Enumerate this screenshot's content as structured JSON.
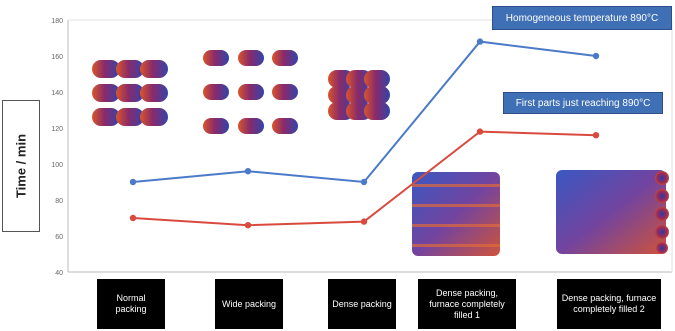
{
  "chart_data": {
    "type": "line",
    "ylabel": "Time / min",
    "ylim": [
      40,
      180
    ],
    "yticks": [
      "40",
      "60",
      "80",
      "100",
      "120",
      "140",
      "160",
      "180"
    ],
    "categories": [
      "Normal packing",
      "Wide packing",
      "Dense packing",
      "Dense packing, furnace completely filled 1",
      "Dense packing, furnace completely filled 2"
    ],
    "series": [
      {
        "name": "Homogeneous temperature 890°C",
        "color": "#4a7ac8",
        "values": [
          90,
          96,
          90,
          168,
          160
        ]
      },
      {
        "name": "First parts just reaching 890°C",
        "color": "#d94a3e",
        "values": [
          70,
          66,
          68,
          118,
          116
        ]
      }
    ],
    "grid": false
  }
}
